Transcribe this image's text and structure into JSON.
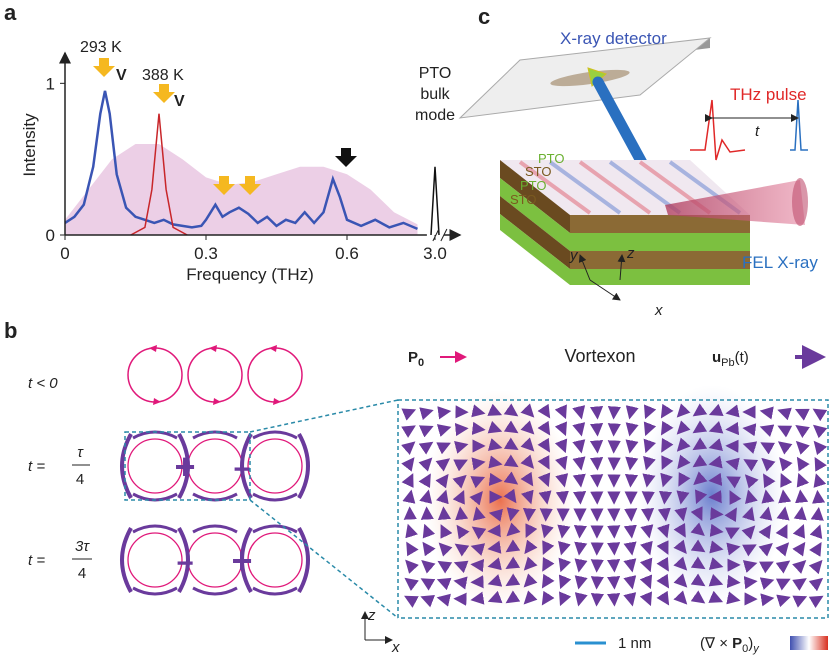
{
  "panel_labels": {
    "a": "a",
    "b": "b",
    "c": "c"
  },
  "chart_data": {
    "type": "line",
    "xlabel": "Frequency (THz)",
    "ylabel": "Intensity",
    "xlim": [
      0,
      0.77
    ],
    "break_xlim": [
      2.95,
      3.05
    ],
    "ylim": [
      0,
      1.2
    ],
    "xticks": [
      0,
      0.3,
      0.6,
      {
        "value": 3.0,
        "label": "3.0"
      }
    ],
    "yticks": [
      0,
      1
    ],
    "area": {
      "color": "#e7c3e0",
      "x": [
        0,
        0.05,
        0.1,
        0.15,
        0.2,
        0.25,
        0.3,
        0.35,
        0.4,
        0.45,
        0.5,
        0.55,
        0.6,
        0.65,
        0.7,
        0.75
      ],
      "values": [
        0.1,
        0.3,
        0.5,
        0.6,
        0.6,
        0.5,
        0.38,
        0.33,
        0.35,
        0.4,
        0.45,
        0.45,
        0.4,
        0.3,
        0.15,
        0.07
      ]
    },
    "series": [
      {
        "color": "#3a55b4",
        "x": [
          0,
          0.02,
          0.04,
          0.06,
          0.075,
          0.085,
          0.095,
          0.11,
          0.13,
          0.15,
          0.17,
          0.19,
          0.21,
          0.23,
          0.25,
          0.27,
          0.29,
          0.3,
          0.32,
          0.335,
          0.35,
          0.37,
          0.39,
          0.41,
          0.43,
          0.45,
          0.47,
          0.49,
          0.51,
          0.53,
          0.55,
          0.57,
          0.585,
          0.6,
          0.63,
          0.66,
          0.69,
          0.72,
          0.75
        ],
        "values": [
          0.08,
          0.12,
          0.2,
          0.45,
          0.8,
          0.95,
          0.8,
          0.4,
          0.18,
          0.12,
          0.1,
          0.08,
          0.1,
          0.07,
          0.06,
          0.05,
          0.06,
          0.1,
          0.2,
          0.12,
          0.15,
          0.18,
          0.14,
          0.08,
          0.12,
          0.06,
          0.1,
          0.08,
          0.15,
          0.08,
          0.15,
          0.37,
          0.25,
          0.1,
          0.06,
          0.1,
          0.05,
          0.08,
          0.04
        ]
      },
      {
        "color": "#c8262a",
        "x": [
          0.14,
          0.17,
          0.185,
          0.2,
          0.215,
          0.23,
          0.26
        ],
        "values": [
          0,
          0.05,
          0.3,
          0.8,
          0.3,
          0.05,
          0
        ]
      },
      {
        "color": "#111111",
        "x": [
          2.98,
          3.0,
          3.02
        ],
        "values": [
          0,
          0.45,
          0
        ]
      }
    ],
    "annotations": {
      "t293": "293 K",
      "t388": "388 K",
      "v1": "V",
      "v2": "V",
      "pto": [
        "PTO",
        "bulk",
        "mode"
      ]
    }
  },
  "panel_b": {
    "rows": [
      {
        "lhs": "t < 0"
      },
      {
        "lhs": "t =",
        "num": "τ",
        "den": "4"
      },
      {
        "lhs": "t =",
        "num": "3τ",
        "den": "4"
      }
    ],
    "title": "Vortexon",
    "p0": {
      "main": "P",
      "sub": "0"
    },
    "upb": {
      "main": "u",
      "sub": "Pb",
      "rest": "(t)"
    },
    "axis_z": "z",
    "axis_x": "x",
    "scale": "1 nm",
    "colorbar": {
      "open": "(∇ × ",
      "main": "P",
      "sub": "0",
      "close": ")",
      "sub2": "y"
    },
    "signs": [
      "+",
      "−",
      "−",
      "+"
    ]
  },
  "panel_c": {
    "detector": "X-ray detector",
    "thz": "THz pulse",
    "delay": "t",
    "layers": [
      "PTO",
      "STO",
      "PTO",
      "STO"
    ],
    "fel": "FEL X-ray",
    "axes": [
      "y",
      "z",
      "x"
    ]
  }
}
